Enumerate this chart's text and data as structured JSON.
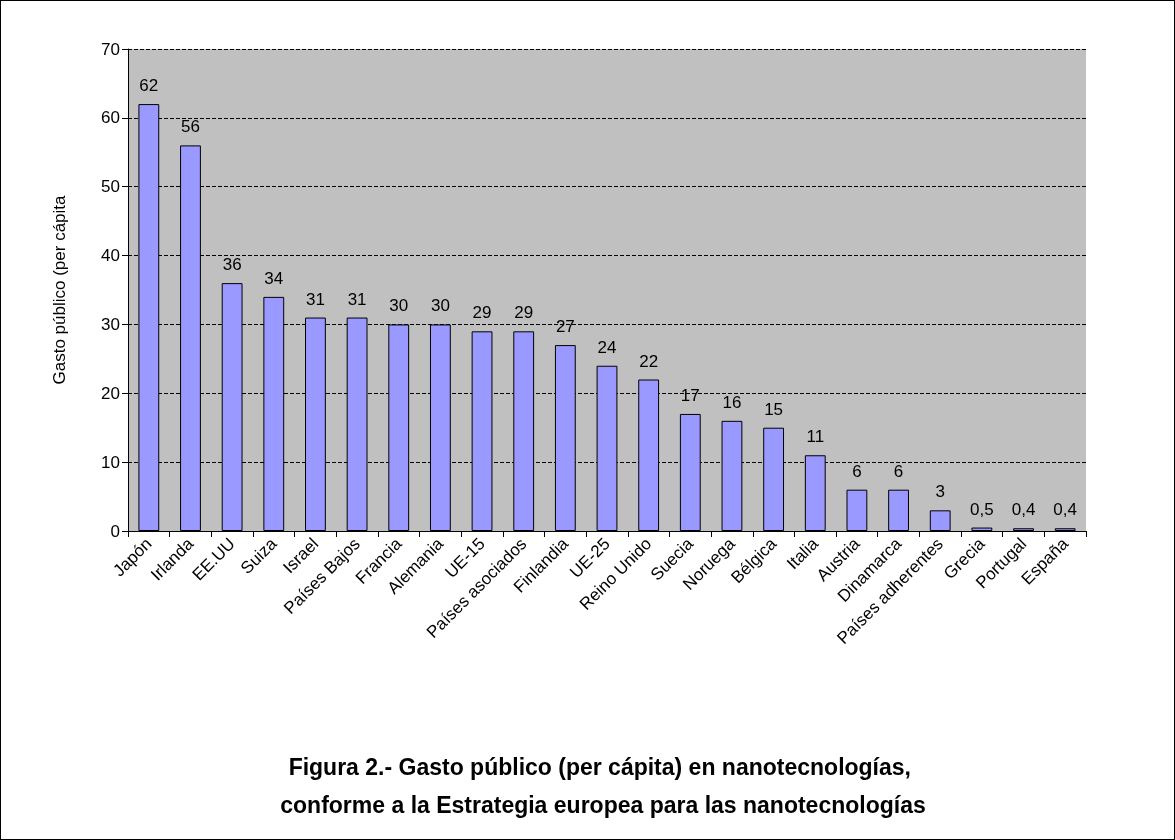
{
  "chart_data": {
    "type": "bar",
    "title": "Figura 2.- Gasto público (per cápita) en nanotecnologías, conforme a la Estrategia europea para las nanotecnologías",
    "ylabel": "Gasto público (per cápita",
    "categories": [
      "Japón",
      "Irlanda",
      "EE.UU",
      "Suiza",
      "Israel",
      "Países Bajos",
      "Francia",
      "Alemania",
      "UE-15",
      "Países asociados",
      "Finlandia",
      "UE-25",
      "Reino Unido",
      "Suecia",
      "Noruega",
      "Bélgica",
      "Italia",
      "Austria",
      "Dinamarca",
      "Países adherentes",
      "Grecia",
      "Portugal",
      "España"
    ],
    "values": [
      62,
      56,
      36,
      34,
      31,
      31,
      30,
      30,
      29,
      29,
      27,
      24,
      22,
      17,
      16,
      15,
      11,
      6,
      6,
      3,
      0.5,
      0.4,
      0.4
    ],
    "value_labels": [
      "62",
      "56",
      "36",
      "34",
      "31",
      "31",
      "30",
      "30",
      "29",
      "29",
      "27",
      "24",
      "22",
      "17",
      "16",
      "15",
      "11",
      "6",
      "6",
      "3",
      "0,5",
      "0,4",
      "0,4"
    ],
    "color": "#9999ff",
    "ylim": [
      0,
      70
    ],
    "yticks": [
      0,
      10,
      20,
      30,
      40,
      50,
      60,
      70
    ],
    "grid": "y"
  }
}
